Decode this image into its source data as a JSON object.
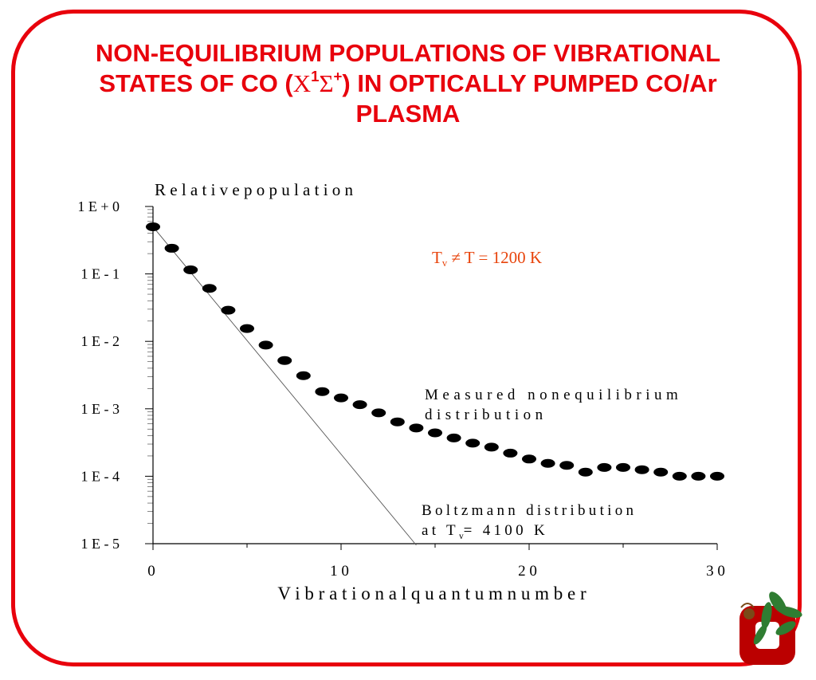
{
  "title": {
    "line1": "NON-EQUILIBRIUM POPULATIONS OF VIBRATIONAL",
    "line2_pre": "STATES OF CO (",
    "line2_X": "X",
    "line2_sup1": "1",
    "line2_Sigma": "Σ",
    "line2_sup2": "+",
    "line2_post": ") IN OPTICALLY PUMPED CO/Ar",
    "line3": "PLASMA"
  },
  "colors": {
    "frame": "#e8000c",
    "title": "#e8000c",
    "annotation_temp": "#e8440c",
    "points": "#000000",
    "boltzmann_line": "#555555"
  },
  "annotations": {
    "temp_prefix": "T",
    "temp_sub": "v",
    "temp_rest": " ≠ T = 1200 K",
    "measured_line1": "Measured nonequilibrium",
    "measured_line2": "distribution",
    "boltzmann_line1": "Boltzmann distribution",
    "boltzmann_line2_pre": "at T",
    "boltzmann_line2_sub": "v",
    "boltzmann_line2_post": "= 4100 K"
  },
  "logo": {
    "icon": "ohio-state-block-o-buckeye-leaf-icon"
  },
  "chart_data": {
    "type": "scatter",
    "title": "",
    "xlabel": "V i b r a t i o n a l  q u a n t u m  n u m b e r",
    "ylabel": "R e l a t i v e  p o p u l a t i o n",
    "xlim": [
      0,
      30
    ],
    "ylim": [
      1e-05,
      1
    ],
    "y_scale": "log",
    "grid": false,
    "x_ticks": [
      0,
      10,
      20,
      30
    ],
    "x_tick_labels": [
      "0",
      "1 0",
      "2 0",
      "3 0"
    ],
    "y_ticks": [
      1,
      0.1,
      0.01,
      0.001,
      0.0001,
      1e-05
    ],
    "y_tick_labels": [
      "1 E + 0",
      "1 E - 1",
      "1 E - 2",
      "1 E - 3",
      "1 E - 4",
      "1 E - 5"
    ],
    "series": [
      {
        "name": "Measured nonequilibrium distribution",
        "marker": "filled-ellipse",
        "x": [
          0,
          1,
          2,
          3,
          4,
          5,
          6,
          7,
          8,
          9,
          10,
          11,
          12,
          13,
          14,
          15,
          16,
          17,
          18,
          19,
          20,
          21,
          22,
          23,
          24,
          25,
          26,
          27,
          28,
          29,
          30
        ],
        "y": [
          0.5,
          0.24,
          0.115,
          0.061,
          0.029,
          0.0155,
          0.0088,
          0.0052,
          0.0031,
          0.0018,
          0.00145,
          0.00115,
          0.00087,
          0.00064,
          0.00052,
          0.00044,
          0.00037,
          0.00031,
          0.00027,
          0.00022,
          0.00018,
          0.000155,
          0.000145,
          0.000115,
          0.000135,
          0.000135,
          0.000125,
          0.000115,
          0.0001,
          0.0001,
          0.0001
        ]
      },
      {
        "name": "Boltzmann distribution at Tv= 4100 K",
        "marker": "line",
        "x": [
          0,
          14
        ],
        "y": [
          0.5,
          9.5e-06
        ]
      }
    ]
  }
}
